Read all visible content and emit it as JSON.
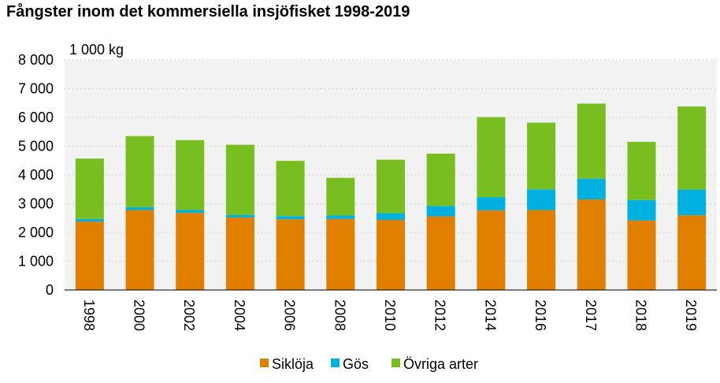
{
  "chart_data": {
    "type": "bar",
    "stacked": true,
    "title": "Fångster inom det kommersiella insjöfisket 1998-2019",
    "unit_label": "1 000 kg",
    "xlabel": "",
    "ylabel": "",
    "ylim": [
      0,
      8000
    ],
    "yticks": [
      0,
      1000,
      2000,
      3000,
      4000,
      5000,
      6000,
      7000,
      8000
    ],
    "ytick_labels": [
      "0",
      "1 000",
      "2 000",
      "3 000",
      "4 000",
      "5 000",
      "6 000",
      "7 000",
      "8 000"
    ],
    "categories": [
      "1998",
      "2000",
      "2002",
      "2004",
      "2006",
      "2008",
      "2010",
      "2012",
      "2014",
      "2016",
      "2017",
      "2018",
      "2019"
    ],
    "series": [
      {
        "name": "Siklöja",
        "color": "#e07e00",
        "values": [
          2380,
          2780,
          2680,
          2520,
          2460,
          2470,
          2440,
          2560,
          2770,
          2780,
          3150,
          2420,
          2600
        ]
      },
      {
        "name": "Gös",
        "color": "#00b0e0",
        "values": [
          90,
          100,
          100,
          90,
          110,
          120,
          230,
          360,
          460,
          720,
          720,
          710,
          890
        ]
      },
      {
        "name": "Övriga arter",
        "color": "#78be20",
        "values": [
          2100,
          2470,
          2430,
          2440,
          1920,
          1310,
          1860,
          1820,
          2780,
          2320,
          2610,
          2020,
          2890
        ]
      }
    ],
    "grid": true,
    "grid_style": "dotted",
    "plot_background": "#f2f2f2",
    "legend_position": "bottom",
    "xtick_rotation": 90
  }
}
